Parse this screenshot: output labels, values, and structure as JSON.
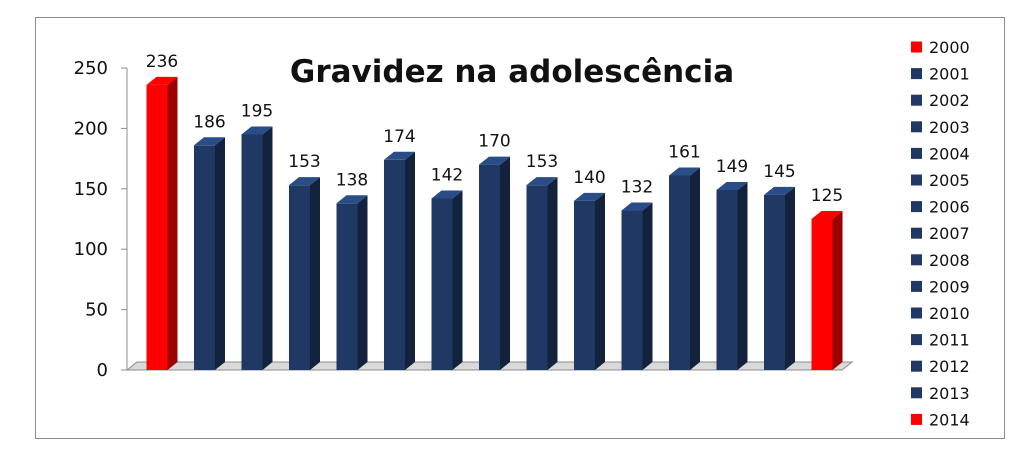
{
  "chart_data": {
    "type": "bar",
    "title": "Gravidez na adolescência",
    "xlabel": "",
    "ylabel": "",
    "categories": [
      "2000",
      "2001",
      "2002",
      "2003",
      "2004",
      "2005",
      "2006",
      "2007",
      "2008",
      "2009",
      "2010",
      "2011",
      "2012",
      "2013",
      "2014"
    ],
    "values": [
      236,
      186,
      195,
      153,
      138,
      174,
      142,
      170,
      153,
      140,
      132,
      161,
      149,
      145,
      125
    ],
    "ylim": [
      0,
      250
    ],
    "yticks": [
      0,
      50,
      100,
      150,
      200,
      250
    ],
    "grid": false,
    "legend": "right",
    "style": "3d-columns",
    "colors": {
      "highlight": "#ff0000",
      "default": "#1f3864"
    },
    "highlighted_categories": [
      "2000",
      "2014"
    ]
  }
}
